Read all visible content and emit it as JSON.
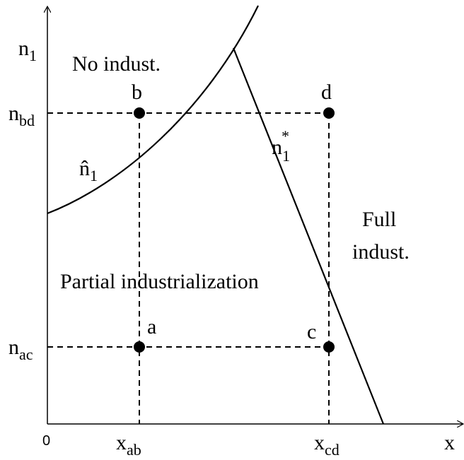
{
  "axes": {
    "y_label": {
      "main": "n",
      "sub": "1"
    },
    "x_label": "x",
    "origin": "0"
  },
  "y_ticks": [
    {
      "main": "n",
      "sub": "bd"
    },
    {
      "main": "n",
      "sub": "ac"
    }
  ],
  "x_ticks": [
    {
      "main": "x",
      "sub": "ab"
    },
    {
      "main": "x",
      "sub": "cd"
    }
  ],
  "points": [
    "a",
    "b",
    "c",
    "d"
  ],
  "regions": {
    "top": "No indust.",
    "middle": "Partial industrialization",
    "right": [
      "Full",
      "indust."
    ]
  },
  "curves": {
    "hat": {
      "main": "n̂",
      "sub": "1"
    },
    "star": {
      "main": "n",
      "sub": "1",
      "sup": "*"
    }
  }
}
